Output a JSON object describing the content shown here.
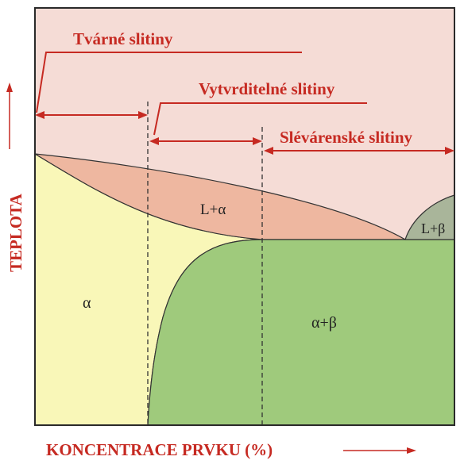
{
  "axes": {
    "y_label": "TEPLOTA",
    "x_label": "KONCENTRACE PRVKU (%)"
  },
  "alloy_ranges": {
    "wrought": "Tvárné slitiny",
    "hardenable": "Vytvrditelné slitiny",
    "casting": "Slévárenské slitiny"
  },
  "regions": {
    "alpha": "α",
    "liquid_alpha": "L+α",
    "liquid_beta": "L+β",
    "alpha_beta": "α+β"
  },
  "colors": {
    "accent": "#c62a22",
    "liquid": "#f5dcd6",
    "liquid_alpha": "#eeb7a0",
    "alpha": "#f9f7b8",
    "alpha_beta": "#9fca7c",
    "liquid_beta": "#a9b59a",
    "frame": "#2a2a2a"
  }
}
